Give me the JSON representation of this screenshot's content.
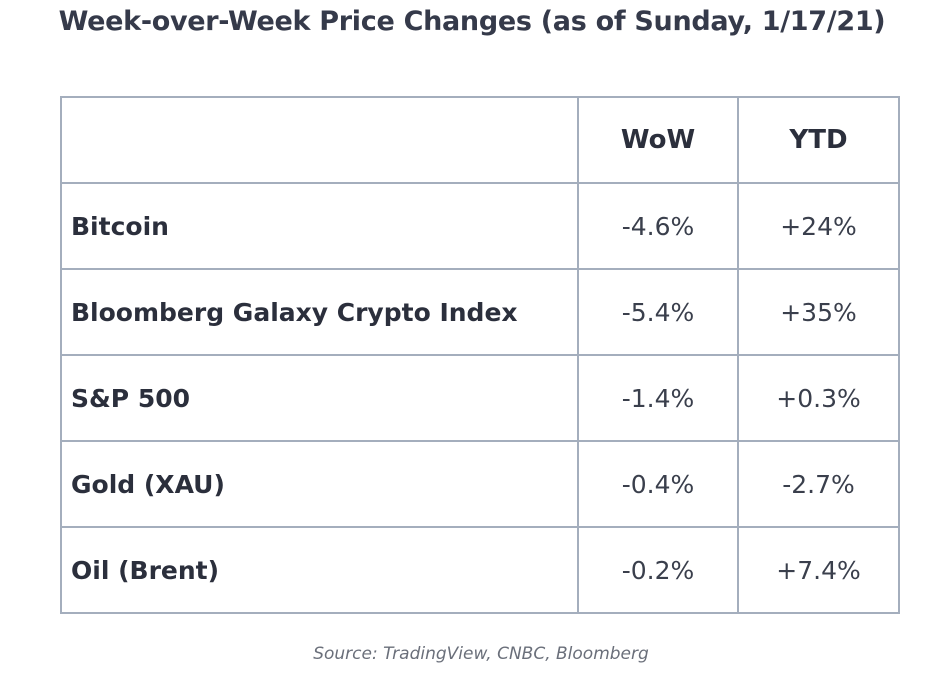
{
  "title": "Week-over-Week Price Changes (as of Sunday, 1/17/21)",
  "source": "Source: TradingView, CNBC, Bloomberg",
  "chart_data": {
    "type": "table",
    "title": "Week-over-Week Price Changes (as of Sunday, 1/17/21)",
    "columns": [
      "",
      "WoW",
      "YTD"
    ],
    "rows": [
      {
        "name": "Bitcoin",
        "wow": "-4.6%",
        "ytd": "+24%"
      },
      {
        "name": "Bloomberg Galaxy Crypto Index",
        "wow": "-5.4%",
        "ytd": "+35%"
      },
      {
        "name": "S&P 500",
        "wow": "-1.4%",
        "ytd": "+0.3%"
      },
      {
        "name": "Gold (XAU)",
        "wow": "-0.4%",
        "ytd": "-2.7%"
      },
      {
        "name": "Oil (Brent)",
        "wow": "-0.2%",
        "ytd": "+7.4%"
      }
    ]
  }
}
